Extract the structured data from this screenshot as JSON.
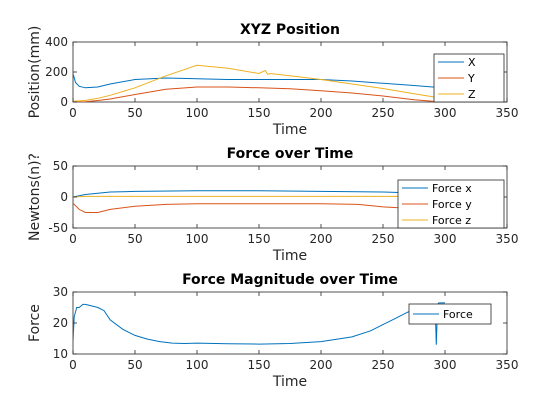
{
  "colors": {
    "blue": "#0072BD",
    "orange": "#D95319",
    "yellow": "#EDB120",
    "axis": "#262626",
    "legend_border": "#262626"
  },
  "chart_data": [
    {
      "type": "line",
      "title": "XYZ Position",
      "xlabel": "Time",
      "ylabel": "Position(mm)",
      "xlim": [
        0,
        350
      ],
      "ylim": [
        0,
        400
      ],
      "xticks": [
        0,
        50,
        100,
        150,
        200,
        250,
        300,
        350
      ],
      "yticks": [
        0,
        200,
        400
      ],
      "legend_placement": "top-right",
      "series": [
        {
          "name": "X",
          "color": "blue",
          "x": [
            0,
            2,
            5,
            10,
            20,
            30,
            50,
            75,
            100,
            125,
            150,
            175,
            200,
            225,
            250,
            275,
            290,
            295,
            300
          ],
          "y": [
            190,
            130,
            105,
            95,
            100,
            120,
            150,
            160,
            155,
            150,
            150,
            150,
            150,
            140,
            125,
            110,
            100,
            100,
            100
          ]
        },
        {
          "name": "Y",
          "color": "orange",
          "x": [
            0,
            10,
            20,
            30,
            50,
            75,
            100,
            125,
            150,
            175,
            200,
            225,
            250,
            275,
            290,
            300
          ],
          "y": [
            0,
            2,
            10,
            20,
            50,
            85,
            100,
            100,
            95,
            88,
            75,
            60,
            40,
            15,
            5,
            0
          ]
        },
        {
          "name": "Z",
          "color": "yellow",
          "x": [
            0,
            10,
            20,
            30,
            50,
            75,
            100,
            125,
            150,
            155,
            157,
            159,
            175,
            200,
            225,
            250,
            275,
            290,
            300
          ],
          "y": [
            5,
            10,
            25,
            45,
            95,
            175,
            245,
            225,
            190,
            210,
            185,
            190,
            175,
            150,
            120,
            90,
            55,
            35,
            10
          ]
        }
      ]
    },
    {
      "type": "line",
      "title": "Force over Time",
      "xlabel": "Time",
      "ylabel": "Newtons(n)?",
      "xlim": [
        0,
        350
      ],
      "ylim": [
        -50,
        50
      ],
      "xticks": [
        0,
        50,
        100,
        150,
        200,
        250,
        300,
        350
      ],
      "yticks": [
        -50,
        0,
        50
      ],
      "legend_placement": "top-right",
      "series": [
        {
          "name": "Force x",
          "color": "blue",
          "x": [
            0,
            5,
            10,
            20,
            30,
            50,
            100,
            150,
            200,
            250,
            270
          ],
          "y": [
            0,
            2,
            4,
            6,
            8,
            9,
            10,
            10,
            9,
            8,
            7
          ]
        },
        {
          "name": "Force y",
          "color": "orange",
          "x": [
            0,
            5,
            10,
            20,
            30,
            50,
            75,
            100,
            150,
            200,
            230,
            250,
            270
          ],
          "y": [
            -10,
            -20,
            -25,
            -25,
            -20,
            -15,
            -12,
            -11,
            -11,
            -11,
            -12,
            -16,
            -18
          ]
        },
        {
          "name": "Force z",
          "color": "yellow",
          "x": [
            0,
            10,
            50,
            100,
            150,
            200,
            250,
            270
          ],
          "y": [
            0,
            1,
            1,
            1,
            1,
            1,
            1,
            1
          ]
        }
      ]
    },
    {
      "type": "line",
      "title": "Force Magnitude over Time",
      "xlabel": "Time",
      "ylabel": "Force",
      "xlim": [
        0,
        350
      ],
      "ylim": [
        10,
        30
      ],
      "xticks": [
        0,
        50,
        100,
        150,
        200,
        250,
        300,
        350
      ],
      "yticks": [
        10,
        20,
        30
      ],
      "legend_placement": "top-right",
      "series": [
        {
          "name": "Force",
          "color": "blue",
          "x": [
            0,
            1,
            3,
            5,
            8,
            10,
            15,
            20,
            25,
            30,
            40,
            50,
            60,
            70,
            80,
            90,
            100,
            125,
            150,
            175,
            200,
            225,
            240,
            250,
            260,
            270,
            280,
            290,
            292,
            293,
            294,
            295,
            300
          ],
          "y": [
            14,
            22,
            25,
            25,
            26,
            26,
            25.5,
            25,
            24,
            21,
            18,
            16,
            14.8,
            14,
            13.5,
            13.4,
            13.5,
            13.3,
            13.2,
            13.4,
            14,
            15.5,
            17.5,
            19.5,
            21.5,
            23.5,
            25,
            26,
            26,
            13,
            26,
            26.5,
            26.5
          ]
        }
      ]
    }
  ]
}
